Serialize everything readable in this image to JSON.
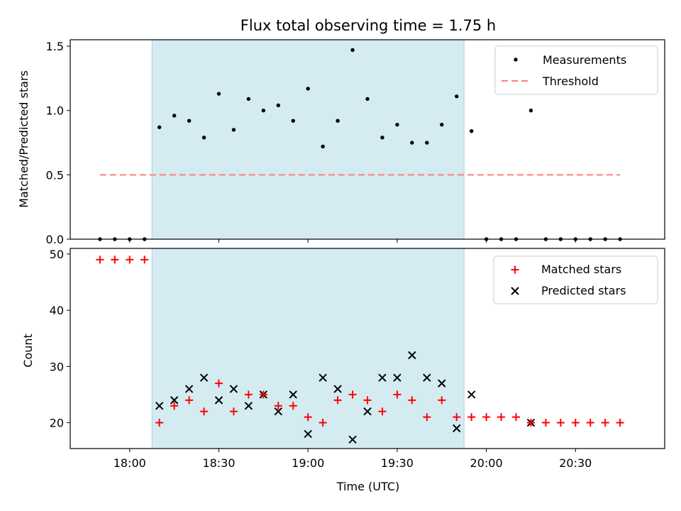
{
  "title": "Flux total observing time = 1.75 h",
  "colors": {
    "shade": "#d3ebf1",
    "shade_edge": "#a9d3dd",
    "measurement": "#000000",
    "threshold": "#ff7f7f",
    "matched": "#ff0000",
    "predicted": "#000000"
  },
  "chart_data": [
    {
      "type": "scatter",
      "panel": "top",
      "ylabel": "Matched/Predicted stars",
      "ylim": [
        0,
        1.55
      ],
      "xlim": [
        "17:40",
        "21:00"
      ],
      "yticks": [
        "0.0",
        "0.5",
        "1.0",
        "1.5"
      ],
      "ytick_values": [
        0,
        0.5,
        1.0,
        1.5
      ],
      "shaded_span": [
        "18:07.5",
        "19:52.5"
      ],
      "threshold": {
        "name": "Threshold",
        "y": 0.5,
        "x_range": [
          "17:50",
          "20:45"
        ]
      },
      "legend": [
        "Measurements",
        "Threshold"
      ],
      "legend_position": "top-right",
      "series": [
        {
          "name": "Measurements",
          "x": [
            "17:50",
            "17:55",
            "18:00",
            "18:05",
            "18:10",
            "18:15",
            "18:20",
            "18:25",
            "18:30",
            "18:35",
            "18:40",
            "18:45",
            "18:50",
            "18:55",
            "19:00",
            "19:05",
            "19:10",
            "19:15",
            "19:20",
            "19:25",
            "19:30",
            "19:35",
            "19:40",
            "19:45",
            "19:50",
            "19:55",
            "20:00",
            "20:05",
            "20:10",
            "20:15",
            "20:20",
            "20:25",
            "20:30",
            "20:35",
            "20:40",
            "20:45"
          ],
          "y": [
            0,
            0,
            0,
            0,
            0.87,
            0.96,
            0.92,
            0.79,
            1.13,
            0.85,
            1.09,
            1.0,
            1.04,
            0.92,
            1.17,
            0.72,
            0.92,
            1.47,
            1.09,
            0.79,
            0.89,
            0.75,
            0.75,
            0.89,
            1.11,
            0.84,
            0,
            0,
            0,
            1.0,
            0,
            0,
            0,
            0,
            0,
            0
          ]
        }
      ]
    },
    {
      "type": "scatter",
      "panel": "bottom",
      "xlabel": "Time (UTC)",
      "ylabel": "Count",
      "ylim": [
        15.4,
        51
      ],
      "xlim": [
        "17:40",
        "21:00"
      ],
      "xticks": [
        "18:00",
        "18:30",
        "19:00",
        "19:30",
        "20:00",
        "20:30"
      ],
      "yticks": [
        "20",
        "30",
        "40",
        "50"
      ],
      "ytick_values": [
        20,
        30,
        40,
        50
      ],
      "shaded_span": [
        "18:07.5",
        "19:52.5"
      ],
      "legend": [
        "Matched stars",
        "Predicted stars"
      ],
      "legend_position": "top-right",
      "series": [
        {
          "name": "Matched stars",
          "marker": "+",
          "x": [
            "17:50",
            "17:55",
            "18:00",
            "18:05",
            "18:10",
            "18:15",
            "18:20",
            "18:25",
            "18:30",
            "18:35",
            "18:40",
            "18:45",
            "18:50",
            "18:55",
            "19:00",
            "19:05",
            "19:10",
            "19:15",
            "19:20",
            "19:25",
            "19:30",
            "19:35",
            "19:40",
            "19:45",
            "19:50",
            "19:55",
            "20:00",
            "20:05",
            "20:10",
            "20:15",
            "20:20",
            "20:25",
            "20:30",
            "20:35",
            "20:40",
            "20:45"
          ],
          "y": [
            49,
            49,
            49,
            49,
            20,
            23,
            24,
            22,
            27,
            22,
            25,
            25,
            23,
            23,
            21,
            20,
            24,
            25,
            24,
            22,
            25,
            24,
            21,
            24,
            21,
            21,
            21,
            21,
            21,
            20,
            20,
            20,
            20,
            20,
            20,
            20
          ]
        },
        {
          "name": "Predicted stars",
          "marker": "x",
          "x": [
            "18:10",
            "18:15",
            "18:20",
            "18:25",
            "18:30",
            "18:35",
            "18:40",
            "18:45",
            "18:50",
            "18:55",
            "19:00",
            "19:05",
            "19:10",
            "19:15",
            "19:20",
            "19:25",
            "19:30",
            "19:35",
            "19:40",
            "19:45",
            "19:50",
            "19:55",
            "20:15"
          ],
          "y": [
            23,
            24,
            26,
            28,
            24,
            26,
            23,
            25,
            22,
            25,
            18,
            28,
            26,
            17,
            22,
            28,
            28,
            32,
            28,
            27,
            19,
            25,
            20
          ]
        }
      ]
    }
  ]
}
